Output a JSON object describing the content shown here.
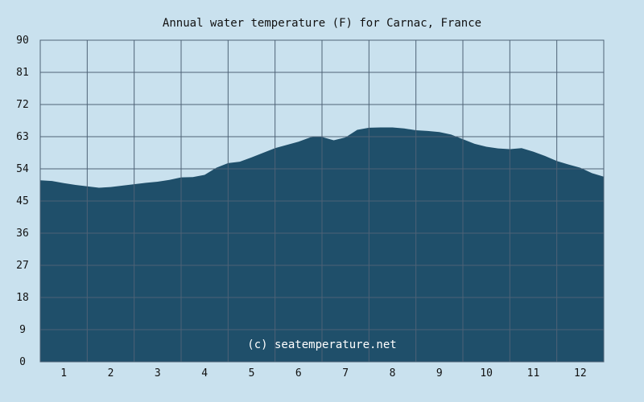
{
  "chart_data": {
    "type": "area",
    "title": "Annual water temperature (F) for Carnac, France",
    "xlabel": "",
    "ylabel": "",
    "ylim": [
      0,
      90
    ],
    "y_ticks": [
      "0",
      "9",
      "18",
      "27",
      "36",
      "45",
      "54",
      "63",
      "72",
      "81",
      "90"
    ],
    "x_ticks": [
      "1",
      "2",
      "3",
      "4",
      "5",
      "6",
      "7",
      "8",
      "9",
      "10",
      "11",
      "12"
    ],
    "x_range": [
      0.5,
      12.5
    ],
    "grid": true,
    "watermark": "(c) seatemperature.net",
    "series": [
      {
        "x": [
          0.5,
          0.75,
          1.0,
          1.25,
          1.5,
          1.75,
          2.0,
          2.25,
          2.5,
          2.75,
          3.0,
          3.25,
          3.5,
          3.75,
          4.0,
          4.25,
          4.5,
          4.75,
          5.0,
          5.25,
          5.5,
          5.75,
          6.0,
          6.25,
          6.45,
          6.75,
          7.0,
          7.25,
          7.5,
          7.75,
          8.0,
          8.25,
          8.5,
          8.75,
          9.0,
          9.25,
          9.5,
          9.75,
          10.0,
          10.25,
          10.5,
          10.75,
          11.0,
          11.25,
          11.5,
          11.75,
          12.0,
          12.25,
          12.5
        ],
        "values": [
          50.8,
          50.6,
          50.0,
          49.5,
          49.1,
          48.7,
          48.9,
          49.3,
          49.7,
          50.1,
          50.4,
          50.9,
          51.6,
          51.7,
          52.3,
          54.3,
          55.6,
          56.0,
          57.2,
          58.5,
          59.8,
          60.7,
          61.6,
          62.8,
          63.1,
          62.0,
          62.8,
          64.9,
          65.5,
          65.6,
          65.6,
          65.3,
          64.8,
          64.6,
          64.3,
          63.6,
          62.3,
          61.0,
          60.2,
          59.7,
          59.5,
          59.8,
          58.8,
          57.6,
          56.2,
          55.2,
          54.3,
          52.8,
          51.8
        ]
      }
    ]
  },
  "colors": {
    "background": "#c9e1ee",
    "area_fill": "#1f4f6a",
    "grid": "#4e6276",
    "text": "#111111",
    "watermark": "#ffffff"
  }
}
